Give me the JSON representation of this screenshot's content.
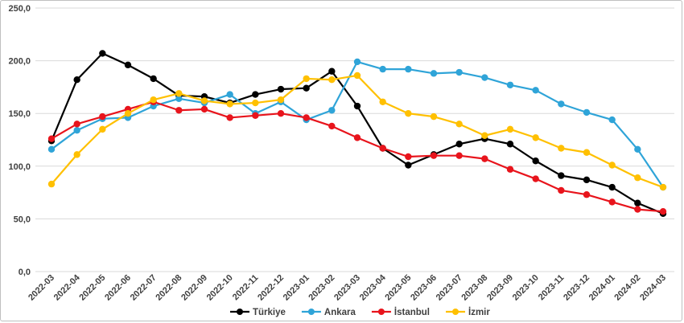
{
  "chart_data": {
    "type": "line",
    "title": "",
    "xlabel": "",
    "ylabel": "",
    "ylim": [
      0,
      250
    ],
    "y_ticks": [
      "0,0",
      "50,0",
      "100,0",
      "150,0",
      "200,0",
      "250,0"
    ],
    "categories": [
      "2022-03",
      "2022-04",
      "2022-05",
      "2022-06",
      "2022-07",
      "2022-08",
      "2022-09",
      "2022-10",
      "2022-11",
      "2022-12",
      "2023-01",
      "2023-02",
      "2023-03",
      "2023-04",
      "2023-05",
      "2023-06",
      "2023-07",
      "2023-08",
      "2023-09",
      "2023-10",
      "2023-11",
      "2023-12",
      "2024-01",
      "2024-02",
      "2024-03"
    ],
    "grid": "horizontal",
    "legend_position": "bottom",
    "series": [
      {
        "name": "Türkiye",
        "color": "#000000",
        "values": [
          124,
          182,
          207,
          196,
          183,
          167,
          166,
          160,
          168,
          173,
          174,
          190,
          157,
          117,
          101,
          111,
          121,
          126,
          121,
          105,
          91,
          87,
          80,
          65,
          55
        ]
      },
      {
        "name": "Ankara",
        "color": "#2fa4d8",
        "values": [
          116,
          134,
          145,
          146,
          157,
          164,
          160,
          168,
          150,
          161,
          144,
          153,
          199,
          192,
          192,
          188,
          189,
          184,
          177,
          172,
          159,
          151,
          144,
          116,
          80
        ]
      },
      {
        "name": "İstanbul",
        "color": "#e8141c",
        "values": [
          126,
          140,
          147,
          154,
          161,
          153,
          154,
          146,
          148,
          150,
          146,
          138,
          127,
          117,
          109,
          110,
          110,
          107,
          97,
          88,
          77,
          73,
          66,
          59,
          57
        ]
      },
      {
        "name": "İzmir",
        "color": "#ffc000",
        "values": [
          83,
          111,
          135,
          150,
          163,
          169,
          162,
          159,
          160,
          163,
          183,
          182,
          186,
          161,
          150,
          147,
          140,
          129,
          135,
          127,
          117,
          113,
          101,
          89,
          80
        ]
      }
    ]
  }
}
